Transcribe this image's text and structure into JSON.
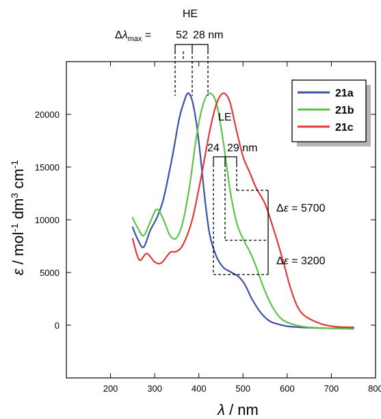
{
  "chart_data": {
    "type": "line",
    "xlim": [
      100,
      800
    ],
    "ylim": [
      -5000,
      25000
    ],
    "x_ticks": [
      "200",
      "300",
      "400",
      "500",
      "600",
      "700",
      "800"
    ],
    "y_ticks": [
      "0",
      "5000",
      "10000",
      "15000",
      "20000"
    ],
    "x_tick_values": [
      200,
      300,
      400,
      500,
      600,
      700,
      800
    ],
    "y_tick_values": [
      0,
      5000,
      10000,
      15000,
      20000
    ],
    "xlabel_symbol": "λ",
    "xlabel_unit": " / nm",
    "ylabel_symbol": "ε",
    "ylabel_unit_1": " / mol",
    "ylabel_sup_1": "-1",
    "ylabel_unit_2": " dm",
    "ylabel_sup_2": "3",
    "ylabel_unit_3": " cm",
    "ylabel_sup_3": "-1",
    "legend_position": "top-right",
    "series": [
      {
        "name": "21a",
        "color": "#3a4fa6",
        "x": [
          250,
          262,
          275,
          290,
          305,
          320,
          340,
          355,
          365,
          375,
          385,
          395,
          405,
          415,
          425,
          440,
          455,
          470,
          490,
          505,
          520,
          540,
          560,
          580,
          600,
          630,
          660,
          700,
          750
        ],
        "y": [
          9300,
          8100,
          7400,
          9000,
          10200,
          12000,
          16000,
          19500,
          21000,
          22000,
          21300,
          19000,
          15500,
          11500,
          8500,
          6500,
          5500,
          5100,
          4600,
          3800,
          2500,
          1200,
          400,
          100,
          -100,
          -200,
          -250,
          -300,
          -300
        ]
      },
      {
        "name": "21b",
        "color": "#5dc24a",
        "x": [
          250,
          262,
          275,
          290,
          305,
          320,
          335,
          350,
          365,
          380,
          395,
          410,
          425,
          440,
          455,
          470,
          485,
          500,
          515,
          530,
          550,
          570,
          590,
          620,
          650,
          700,
          750
        ],
        "y": [
          10200,
          9200,
          8500,
          9800,
          11000,
          10000,
          8500,
          8300,
          10000,
          13500,
          18000,
          21000,
          22000,
          21000,
          17500,
          13000,
          9800,
          8200,
          7000,
          5500,
          3200,
          1500,
          500,
          0,
          -200,
          -300,
          -350
        ]
      },
      {
        "name": "21c",
        "color": "#e2373a",
        "x": [
          250,
          265,
          282,
          300,
          315,
          335,
          350,
          365,
          385,
          405,
          425,
          440,
          455,
          470,
          485,
          500,
          515,
          530,
          550,
          570,
          590,
          610,
          630,
          660,
          700,
          750
        ],
        "y": [
          8200,
          6200,
          6800,
          6000,
          5900,
          6900,
          7000,
          7700,
          10000,
          14000,
          18500,
          21000,
          22000,
          21200,
          18500,
          16000,
          14500,
          13000,
          11500,
          9000,
          6200,
          3200,
          1300,
          400,
          -100,
          -200
        ]
      }
    ],
    "annotations": {
      "he_label": "HE",
      "delta_lambda_label_delta": "Δ",
      "delta_lambda_label_symbol": "λ",
      "delta_lambda_label_sub": "max",
      "delta_lambda_label_eq": " = ",
      "he_shift_1": "52",
      "he_shift_2": "28 nm",
      "le_label": "LE",
      "le_shift_1": "24",
      "le_shift_2": "29 nm",
      "delta_eps_1_delta": "Δ",
      "delta_eps_1_symbol": "ε",
      "delta_eps_1_value": " = 5700",
      "delta_eps_2_delta": "Δ",
      "delta_eps_2_symbol": "ε",
      "delta_eps_2_value": " = 3200"
    }
  }
}
